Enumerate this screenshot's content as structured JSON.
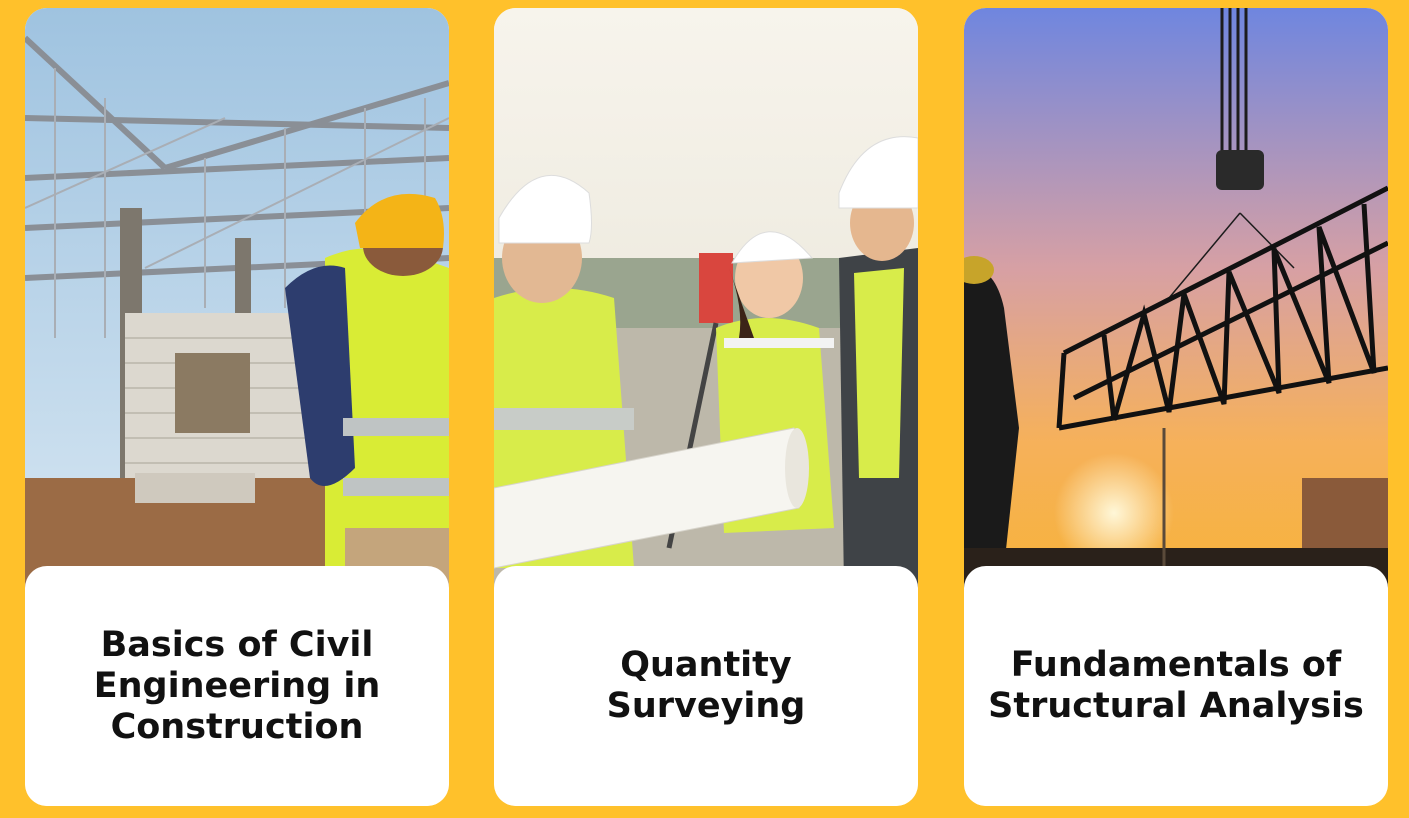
{
  "colors": {
    "background": "#FFC12B",
    "card": "#FFFFFF",
    "title_text": "#111111"
  },
  "courses": [
    {
      "title": "Basics of Civil\nEngineering in\nConstruction",
      "image": "construction-worker-steel-roof-photo"
    },
    {
      "title": "Quantity\nSurveying",
      "image": "surveyors-with-blueprint-photo"
    },
    {
      "title": "Fundamentals of\nStructural Analysis",
      "image": "crane-lifting-steel-truss-sunset-photo"
    }
  ]
}
